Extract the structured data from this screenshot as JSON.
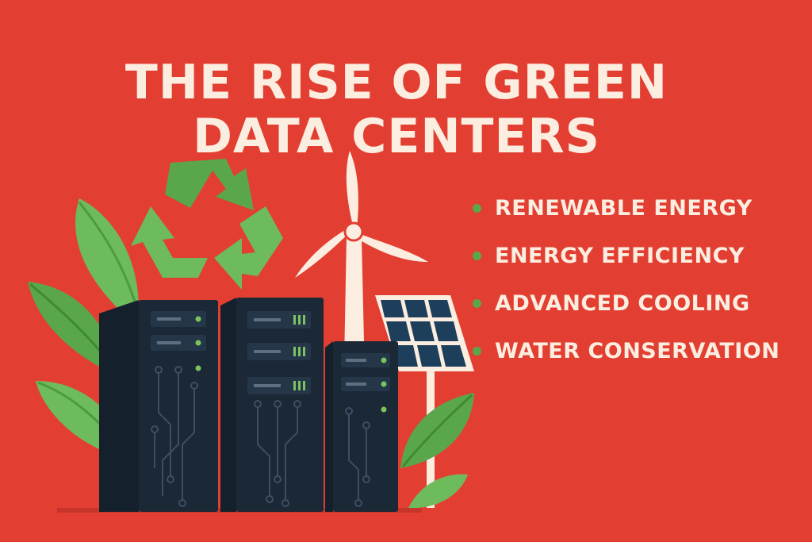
{
  "header": {
    "title_line1": "THE RISE OF GREEN",
    "title_line2": "DATA CENTERS"
  },
  "features": [
    {
      "label": "RENEWABLE ENERGY"
    },
    {
      "label": "ENERGY EFFICIENCY"
    },
    {
      "label": "ADVANCED COOLING"
    },
    {
      "label": "WATER CONSERVATION"
    }
  ],
  "colors": {
    "background": "#e23f32",
    "text": "#fbeee0",
    "accent_green": "#5aa64a",
    "server_dark": "#1b2836"
  },
  "icons": [
    "recycle-icon",
    "wind-turbine-icon",
    "solar-panel-icon",
    "server-rack-icon",
    "leaf-icon"
  ]
}
